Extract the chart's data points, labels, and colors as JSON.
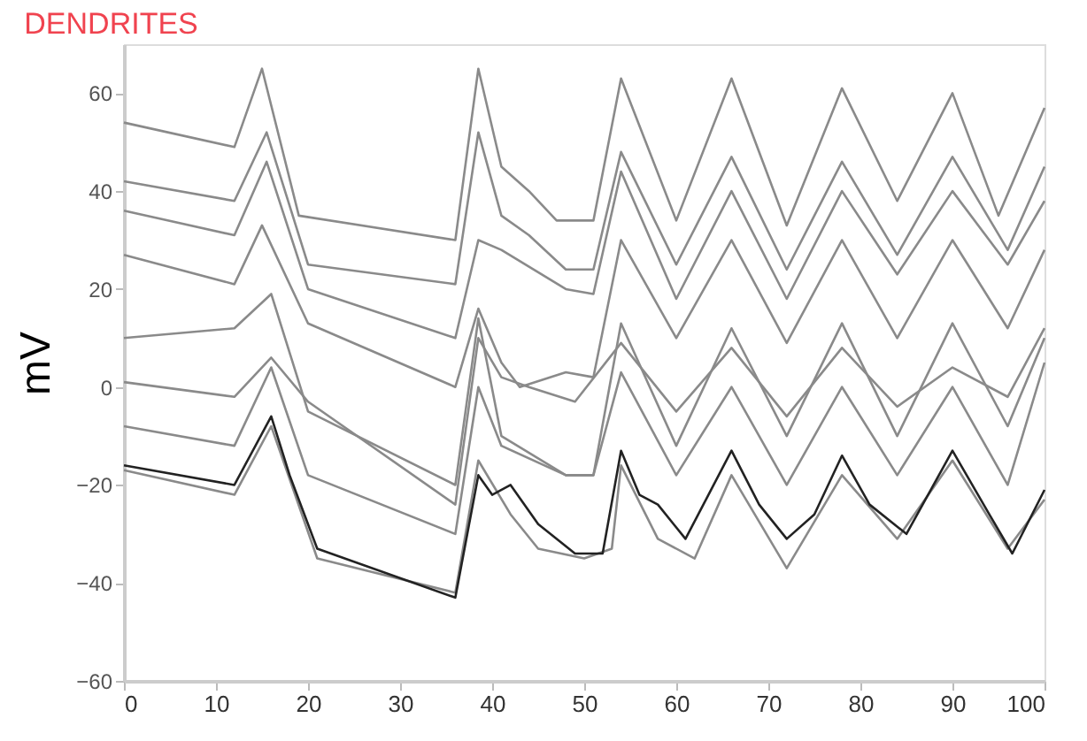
{
  "chart_data": {
    "type": "line",
    "title": "DENDRITES",
    "ylabel": "mV",
    "xlim": [
      0,
      100
    ],
    "xticks": [
      0,
      10,
      20,
      30,
      40,
      50,
      60,
      70,
      80,
      90,
      100
    ],
    "ylim": [
      -60,
      70
    ],
    "yticks": [
      -60,
      -40,
      -20,
      0,
      20,
      40,
      60
    ],
    "grid": false,
    "legend": false,
    "marker": "none",
    "line_style": "solid",
    "series": [
      {
        "color": "#8a8a8a",
        "x": [
          0,
          12,
          15,
          19,
          36,
          38.5,
          41,
          44,
          47,
          51,
          54,
          60,
          66,
          72,
          78,
          84,
          90,
          95,
          100
        ],
        "values": [
          54,
          49,
          65,
          35,
          30,
          65,
          45,
          40,
          34,
          34,
          63,
          34,
          63,
          33,
          61,
          38,
          60,
          35,
          57
        ]
      },
      {
        "color": "#8a8a8a",
        "x": [
          0,
          12,
          15.5,
          20,
          36,
          38.5,
          41,
          44,
          48,
          51,
          54,
          60,
          66,
          72,
          78,
          84,
          90,
          96,
          100
        ],
        "values": [
          42,
          38,
          52,
          25,
          21,
          52,
          35,
          31,
          24,
          24,
          48,
          25,
          47,
          24,
          46,
          27,
          47,
          28,
          45
        ]
      },
      {
        "color": "#8a8a8a",
        "x": [
          0,
          12,
          15.5,
          20,
          36,
          38.5,
          41,
          48,
          51,
          54,
          60,
          66,
          72,
          78,
          84,
          90,
          96,
          100
        ],
        "values": [
          36,
          31,
          46,
          20,
          10,
          30,
          28,
          20,
          19,
          44,
          18,
          40,
          18,
          40,
          23,
          40,
          25,
          38
        ]
      },
      {
        "color": "#8a8a8a",
        "x": [
          0,
          12,
          15,
          20,
          36,
          38.5,
          41,
          43,
          48,
          51,
          54,
          60,
          66,
          72,
          78,
          84,
          90,
          96,
          100
        ],
        "values": [
          27,
          21,
          33,
          13,
          0,
          16,
          5,
          0,
          3,
          2,
          30,
          10,
          30,
          9,
          30,
          10,
          30,
          12,
          28
        ]
      },
      {
        "color": "#8a8a8a",
        "x": [
          0,
          12,
          16,
          20,
          36,
          38.5,
          41,
          48,
          51,
          54,
          60,
          66,
          72,
          78,
          84,
          90,
          96,
          100
        ],
        "values": [
          10,
          12,
          19,
          -5,
          -20,
          14,
          -10,
          -18,
          -18,
          13,
          -12,
          12,
          -10,
          13,
          -10,
          13,
          -8,
          10
        ]
      },
      {
        "color": "#8a8a8a",
        "x": [
          0,
          12,
          16,
          20,
          36,
          38.5,
          41,
          44,
          49,
          54,
          60,
          66,
          72,
          78,
          84,
          90,
          96,
          100
        ],
        "values": [
          1,
          -2,
          6,
          -3,
          -24,
          10,
          2,
          0,
          -3,
          9,
          -5,
          8,
          -6,
          8,
          -4,
          4,
          -2,
          12
        ]
      },
      {
        "color": "#8a8a8a",
        "x": [
          0,
          12,
          16,
          20,
          36,
          38.5,
          41,
          48,
          51,
          54,
          60,
          66,
          72,
          78,
          84,
          90,
          96,
          100
        ],
        "values": [
          -8,
          -12,
          4,
          -18,
          -30,
          0,
          -12,
          -18,
          -18,
          3,
          -18,
          0,
          -20,
          0,
          -18,
          0,
          -20,
          5
        ]
      },
      {
        "color": "#8a8a8a",
        "x": [
          0,
          12,
          16,
          21,
          36,
          38.5,
          42,
          45,
          50,
          53,
          54,
          58,
          62,
          66,
          72,
          78,
          84,
          90,
          96,
          100
        ],
        "values": [
          -17,
          -22,
          -8,
          -35,
          -42,
          -15,
          -26,
          -33,
          -35,
          -33,
          -16,
          -31,
          -35,
          -18,
          -37,
          -18,
          -31,
          -15,
          -33,
          -23
        ]
      },
      {
        "color": "#222222",
        "x": [
          0,
          12,
          16,
          18,
          21,
          36,
          38.5,
          40,
          42,
          45,
          49,
          52,
          54,
          56,
          58,
          61,
          66,
          69,
          72,
          75,
          78,
          81,
          85,
          90,
          94,
          96.5,
          100
        ],
        "values": [
          -16,
          -20,
          -6,
          -18,
          -33,
          -43,
          -18,
          -22,
          -20,
          -28,
          -34,
          -34,
          -13,
          -22,
          -24,
          -31,
          -13,
          -24,
          -31,
          -26,
          -14,
          -24,
          -30,
          -13,
          -26,
          -34,
          -21
        ]
      }
    ]
  }
}
